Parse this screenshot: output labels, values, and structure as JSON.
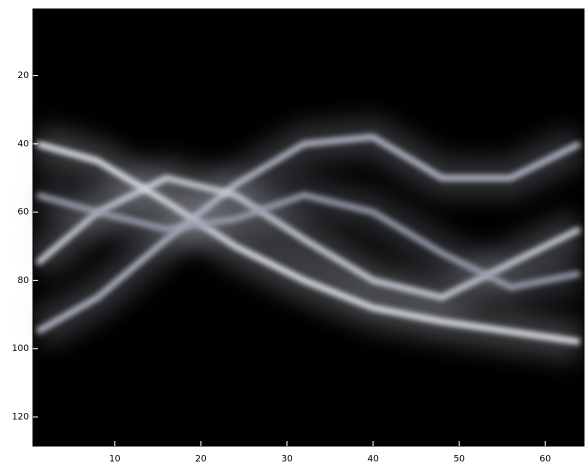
{
  "chart_data": {
    "type": "heatmap",
    "x": [
      1,
      8,
      16,
      24,
      32,
      40,
      48,
      56,
      64
    ],
    "series": [
      {
        "color": "#e6eaf2",
        "values": [
          40,
          45,
          57,
          70,
          80,
          88,
          92,
          95,
          98
        ]
      },
      {
        "color": "#b8bccb",
        "values": [
          95,
          85,
          68,
          52,
          40,
          38,
          50,
          50,
          40
        ]
      },
      {
        "color": "#d0d4df",
        "values": [
          75,
          60,
          50,
          55,
          68,
          80,
          85,
          75,
          65
        ]
      },
      {
        "color": "#9da1b0",
        "values": [
          55,
          60,
          65,
          62,
          55,
          60,
          72,
          82,
          78
        ]
      }
    ],
    "background": "#000000",
    "xlim": [
      0.5,
      64.5
    ],
    "ylim": [
      0.5,
      128.5
    ],
    "y_reversed": true,
    "xticks": [
      10,
      20,
      30,
      40,
      50,
      60
    ],
    "yticks": [
      20,
      40,
      60,
      80,
      100,
      120
    ]
  }
}
